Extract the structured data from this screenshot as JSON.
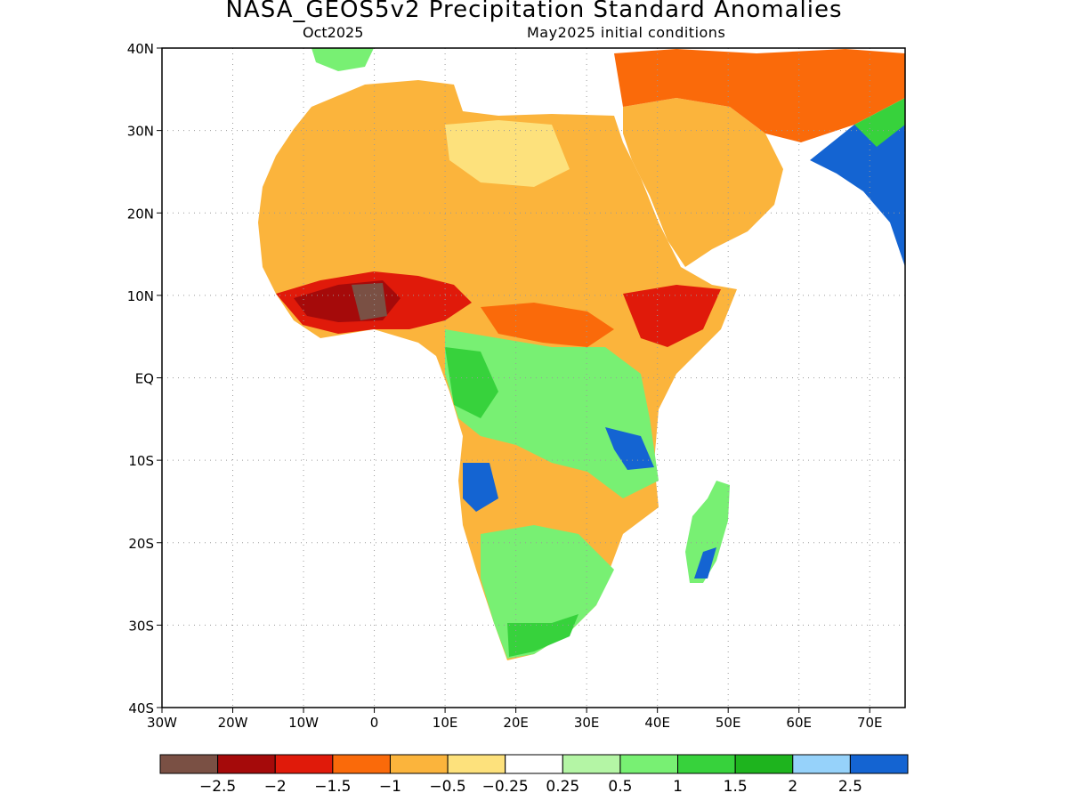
{
  "title": "NASA_GEOS5v2 Precipitation Standard Anomalies",
  "subtitle_left": "Oct2025",
  "subtitle_right": "May2025 initial conditions",
  "map": {
    "lon_range": [
      -30,
      75
    ],
    "lat_range": [
      -40,
      40
    ],
    "x_ticks": [
      "30W",
      "20W",
      "10W",
      "0",
      "10E",
      "20E",
      "30E",
      "40E",
      "50E",
      "60E",
      "70E"
    ],
    "y_ticks": [
      "40N",
      "30N",
      "20N",
      "10N",
      "EQ",
      "10S",
      "20S",
      "30S",
      "40S"
    ],
    "grid": true
  },
  "colorbar": {
    "colors": [
      "#7a5044",
      "#a50a0a",
      "#e01a0a",
      "#fa6a0a",
      "#fbb43c",
      "#fde17c",
      "#ffffff",
      "#b4f5a5",
      "#78f073",
      "#37d23c",
      "#1eb41e",
      "#96d2fa",
      "#1464d2"
    ],
    "labels": [
      "−2.5",
      "−2",
      "−1.5",
      "−1",
      "−0.5",
      "−0.25",
      "0.25",
      "0.5",
      "1",
      "1.5",
      "2",
      "2.5"
    ]
  }
}
